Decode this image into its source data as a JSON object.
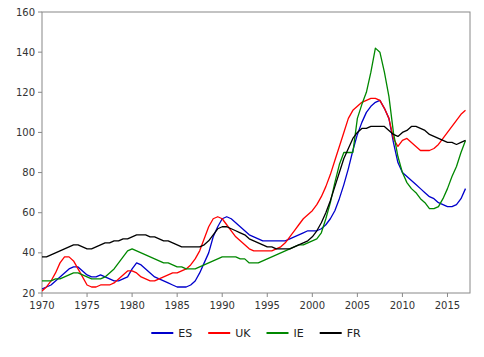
{
  "chart_data": {
    "type": "line",
    "x": [
      1970,
      1970.5,
      1971,
      1971.5,
      1972,
      1972.5,
      1973,
      1973.5,
      1974,
      1974.5,
      1975,
      1975.5,
      1976,
      1976.5,
      1977,
      1977.5,
      1978,
      1978.5,
      1979,
      1979.5,
      1980,
      1980.5,
      1981,
      1981.5,
      1982,
      1982.5,
      1983,
      1983.5,
      1984,
      1984.5,
      1985,
      1985.5,
      1986,
      1986.5,
      1987,
      1987.5,
      1988,
      1988.5,
      1989,
      1989.5,
      1990,
      1990.5,
      1991,
      1991.5,
      1992,
      1992.5,
      1993,
      1993.5,
      1994,
      1994.5,
      1995,
      1995.5,
      1996,
      1996.5,
      1997,
      1997.5,
      1998,
      1998.5,
      1999,
      1999.5,
      2000,
      2000.5,
      2001,
      2001.5,
      2002,
      2002.5,
      2003,
      2003.5,
      2004,
      2004.5,
      2005,
      2005.5,
      2006,
      2006.5,
      2007,
      2007.5,
      2008,
      2008.5,
      2009,
      2009.5,
      2010,
      2010.5,
      2011,
      2011.5,
      2012,
      2012.5,
      2013,
      2013.5,
      2014,
      2014.5,
      2015,
      2015.5,
      2016,
      2016.5,
      2017
    ],
    "series": [
      {
        "name": "ES",
        "color": "#0000CC",
        "values": [
          22,
          23,
          24,
          26,
          28,
          30,
          32,
          33,
          33,
          31,
          29,
          28,
          28,
          29,
          28,
          27,
          26,
          26,
          27,
          28,
          32,
          35,
          34,
          32,
          30,
          28,
          27,
          26,
          25,
          24,
          23,
          23,
          23,
          24,
          26,
          30,
          35,
          40,
          48,
          53,
          57,
          58,
          57,
          55,
          53,
          51,
          49,
          48,
          47,
          46,
          46,
          46,
          46,
          46,
          46,
          47,
          48,
          49,
          50,
          51,
          51,
          51,
          52,
          54,
          57,
          61,
          67,
          74,
          82,
          91,
          99,
          105,
          110,
          113,
          115,
          116,
          112,
          107,
          95,
          85,
          80,
          78,
          76,
          74,
          72,
          70,
          68,
          67,
          65,
          64,
          63,
          63,
          64,
          67,
          72
        ]
      },
      {
        "name": "UK",
        "color": "#FF0000",
        "values": [
          21,
          23,
          26,
          30,
          35,
          38,
          38,
          36,
          32,
          28,
          24,
          23,
          23,
          24,
          24,
          24,
          25,
          27,
          29,
          31,
          31,
          30,
          28,
          27,
          26,
          26,
          27,
          28,
          29,
          30,
          30,
          31,
          32,
          34,
          37,
          41,
          47,
          53,
          57,
          58,
          57,
          54,
          51,
          48,
          46,
          44,
          42,
          41,
          41,
          41,
          41,
          41,
          42,
          43,
          45,
          48,
          51,
          54,
          57,
          59,
          61,
          64,
          68,
          73,
          79,
          86,
          93,
          100,
          107,
          111,
          113,
          115,
          116,
          117,
          117,
          116,
          112,
          107,
          97,
          93,
          96,
          97,
          95,
          93,
          91,
          91,
          91,
          92,
          94,
          97,
          100,
          103,
          106,
          109,
          111
        ]
      },
      {
        "name": "IE",
        "color": "#008800",
        "values": [
          26,
          26,
          26,
          27,
          27,
          28,
          29,
          30,
          30,
          29,
          28,
          27,
          27,
          27,
          28,
          30,
          32,
          35,
          38,
          41,
          42,
          41,
          40,
          39,
          38,
          37,
          36,
          35,
          35,
          34,
          33,
          33,
          32,
          32,
          32,
          33,
          34,
          35,
          36,
          37,
          38,
          38,
          38,
          38,
          37,
          37,
          35,
          35,
          35,
          36,
          37,
          38,
          39,
          40,
          41,
          42,
          43,
          44,
          44,
          45,
          46,
          47,
          50,
          57,
          65,
          75,
          84,
          90,
          90,
          90,
          107,
          114,
          120,
          130,
          142,
          140,
          130,
          118,
          100,
          88,
          80,
          75,
          72,
          70,
          67,
          65,
          62,
          62,
          63,
          67,
          72,
          78,
          83,
          90,
          96
        ]
      },
      {
        "name": "FR",
        "color": "#000000",
        "values": [
          38,
          38,
          39,
          40,
          41,
          42,
          43,
          44,
          44,
          43,
          42,
          42,
          43,
          44,
          45,
          45,
          46,
          46,
          47,
          47,
          48,
          49,
          49,
          49,
          48,
          48,
          47,
          46,
          46,
          45,
          44,
          43,
          43,
          43,
          43,
          43,
          44,
          46,
          49,
          52,
          53,
          53,
          52,
          51,
          50,
          49,
          47,
          46,
          45,
          44,
          43,
          43,
          42,
          42,
          42,
          42,
          43,
          44,
          45,
          46,
          48,
          51,
          55,
          60,
          66,
          73,
          80,
          87,
          92,
          97,
          100,
          102,
          102,
          103,
          103,
          103,
          103,
          101,
          99,
          98,
          100,
          101,
          103,
          103,
          102,
          101,
          99,
          98,
          97,
          96,
          95,
          95,
          94,
          95,
          96
        ]
      }
    ],
    "xlim": [
      1970,
      2017.5
    ],
    "xticks": [
      1970,
      1975,
      1980,
      1985,
      1990,
      1995,
      2000,
      2005,
      2010,
      2015
    ],
    "ylim": [
      20,
      160
    ],
    "yticks": [
      20,
      40,
      60,
      80,
      100,
      120,
      140,
      160
    ],
    "grid": false,
    "legend": "bottom"
  }
}
